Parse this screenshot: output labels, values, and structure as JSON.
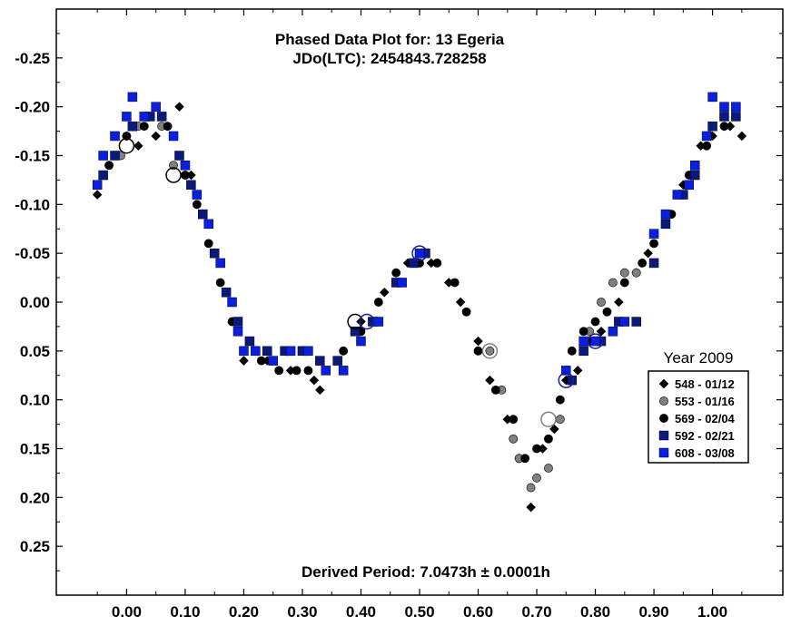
{
  "chart_data": {
    "type": "scatter",
    "title": "Phased Data Plot for: 13 Egeria",
    "subtitle": "JDo(LTC): 2454843.728258",
    "annotation": "Derived Period: 7.0473h  ± 0.0001h",
    "xlim": [
      -0.12,
      1.12
    ],
    "ylim": [
      0.3,
      -0.3
    ],
    "y_inverted": true,
    "x_ticks": [
      0.0,
      0.1,
      0.2,
      0.3,
      0.4,
      0.5,
      0.6,
      0.7,
      0.8,
      0.9,
      1.0
    ],
    "x_tick_labels": [
      "0.00",
      "0.10",
      "0.20",
      "0.30",
      "0.40",
      "0.50",
      "0.60",
      "0.70",
      "0.80",
      "0.90",
      "1.00"
    ],
    "y_ticks": [
      -0.25,
      -0.2,
      -0.15,
      -0.1,
      -0.05,
      0.0,
      0.05,
      0.1,
      0.15,
      0.2,
      0.25
    ],
    "y_tick_labels": [
      "-0.25",
      "-0.20",
      "-0.15",
      "-0.10",
      "-0.05",
      "0.00",
      "0.05",
      "0.10",
      "0.15",
      "0.20",
      "0.25"
    ],
    "grid": false,
    "legend": {
      "title": "Year 2009",
      "placement": "right"
    },
    "series": [
      {
        "name": "548 - 01/12",
        "marker": "diamond",
        "color": "#000000",
        "points": [
          [
            -0.05,
            -0.11
          ],
          [
            -0.03,
            -0.14
          ],
          [
            0.0,
            -0.17
          ],
          [
            0.02,
            -0.16
          ],
          [
            0.05,
            -0.17
          ],
          [
            0.09,
            -0.2
          ],
          [
            0.11,
            -0.13
          ],
          [
            0.13,
            -0.09
          ],
          [
            0.15,
            -0.05
          ],
          [
            0.2,
            0.06
          ],
          [
            0.24,
            0.06
          ],
          [
            0.28,
            0.07
          ],
          [
            0.32,
            0.08
          ],
          [
            0.33,
            0.09
          ],
          [
            0.36,
            0.06
          ],
          [
            0.4,
            0.02
          ],
          [
            0.44,
            -0.01
          ],
          [
            0.48,
            -0.04
          ],
          [
            0.52,
            -0.04
          ],
          [
            0.55,
            -0.02
          ],
          [
            0.57,
            0.0
          ],
          [
            0.6,
            0.04
          ],
          [
            0.62,
            0.08
          ],
          [
            0.65,
            0.12
          ],
          [
            0.67,
            0.16
          ],
          [
            0.69,
            0.21
          ],
          [
            0.71,
            0.15
          ],
          [
            0.73,
            0.13
          ],
          [
            0.75,
            0.08
          ],
          [
            0.77,
            0.07
          ],
          [
            0.79,
            0.04
          ],
          [
            0.81,
            0.03
          ],
          [
            0.84,
            0.0
          ],
          [
            0.87,
            -0.03
          ],
          [
            0.89,
            -0.05
          ],
          [
            0.92,
            -0.08
          ],
          [
            0.95,
            -0.12
          ],
          [
            0.98,
            -0.16
          ],
          [
            1.0,
            -0.17
          ],
          [
            1.03,
            -0.18
          ],
          [
            1.05,
            -0.17
          ]
        ]
      },
      {
        "name": "553 - 01/16",
        "marker": "circle",
        "color": "#808080",
        "points": [
          [
            -0.04,
            -0.13
          ],
          [
            -0.01,
            -0.15
          ],
          [
            0.02,
            -0.18
          ],
          [
            0.06,
            -0.18
          ],
          [
            0.08,
            -0.14
          ],
          [
            0.1,
            -0.13
          ],
          [
            0.62,
            0.05
          ],
          [
            0.64,
            0.09
          ],
          [
            0.66,
            0.14
          ],
          [
            0.67,
            0.16
          ],
          [
            0.69,
            0.19
          ],
          [
            0.7,
            0.18
          ],
          [
            0.72,
            0.17
          ],
          [
            0.74,
            0.12
          ],
          [
            0.76,
            0.08
          ],
          [
            0.79,
            0.03
          ],
          [
            0.81,
            0.0
          ],
          [
            0.83,
            -0.02
          ],
          [
            0.85,
            -0.03
          ],
          [
            0.87,
            -0.03
          ]
        ]
      },
      {
        "name": "569 - 02/04",
        "marker": "circle",
        "color": "#000000",
        "points": [
          [
            -0.03,
            -0.14
          ],
          [
            0.0,
            -0.17
          ],
          [
            0.03,
            -0.18
          ],
          [
            0.07,
            -0.18
          ],
          [
            0.1,
            -0.13
          ],
          [
            0.12,
            -0.1
          ],
          [
            0.14,
            -0.06
          ],
          [
            0.16,
            -0.02
          ],
          [
            0.18,
            0.02
          ],
          [
            0.2,
            0.05
          ],
          [
            0.23,
            0.06
          ],
          [
            0.26,
            0.07
          ],
          [
            0.29,
            0.07
          ],
          [
            0.31,
            0.07
          ],
          [
            0.34,
            0.07
          ],
          [
            0.37,
            0.05
          ],
          [
            0.4,
            0.03
          ],
          [
            0.43,
            0.0
          ],
          [
            0.46,
            -0.03
          ],
          [
            0.5,
            -0.04
          ],
          [
            0.53,
            -0.04
          ],
          [
            0.56,
            -0.02
          ],
          [
            0.58,
            0.01
          ],
          [
            0.6,
            0.05
          ],
          [
            0.63,
            0.09
          ],
          [
            0.66,
            0.12
          ],
          [
            0.68,
            0.16
          ],
          [
            0.7,
            0.15
          ],
          [
            0.72,
            0.14
          ],
          [
            0.74,
            0.1
          ],
          [
            0.76,
            0.05
          ],
          [
            0.78,
            0.03
          ],
          [
            0.8,
            0.02
          ],
          [
            0.82,
            0.01
          ],
          [
            0.85,
            -0.02
          ],
          [
            0.88,
            -0.04
          ],
          [
            0.9,
            -0.06
          ],
          [
            0.93,
            -0.09
          ],
          [
            0.96,
            -0.13
          ],
          [
            0.99,
            -0.16
          ],
          [
            1.02,
            -0.18
          ],
          [
            1.04,
            -0.19
          ]
        ]
      },
      {
        "name": "592 - 02/21",
        "marker": "square",
        "color": "#0a1a7a",
        "points": [
          [
            -0.04,
            -0.13
          ],
          [
            -0.02,
            -0.15
          ],
          [
            0.01,
            -0.18
          ],
          [
            0.04,
            -0.19
          ],
          [
            0.06,
            -0.19
          ],
          [
            0.09,
            -0.15
          ],
          [
            0.11,
            -0.12
          ],
          [
            0.13,
            -0.09
          ],
          [
            0.15,
            -0.05
          ],
          [
            0.17,
            -0.01
          ],
          [
            0.19,
            0.02
          ],
          [
            0.21,
            0.04
          ],
          [
            0.24,
            0.05
          ],
          [
            0.27,
            0.05
          ],
          [
            0.3,
            0.05
          ],
          [
            0.33,
            0.06
          ],
          [
            0.36,
            0.06
          ],
          [
            0.39,
            0.03
          ],
          [
            0.42,
            0.02
          ],
          [
            0.46,
            -0.02
          ],
          [
            0.49,
            -0.04
          ],
          [
            0.51,
            -0.05
          ],
          [
            0.76,
            0.08
          ],
          [
            0.78,
            0.05
          ],
          [
            0.81,
            0.04
          ],
          [
            0.84,
            0.02
          ],
          [
            0.87,
            0.02
          ],
          [
            0.9,
            -0.04
          ],
          [
            0.92,
            -0.08
          ],
          [
            0.95,
            -0.11
          ],
          [
            0.97,
            -0.13
          ],
          [
            1.0,
            -0.18
          ],
          [
            1.02,
            -0.19
          ],
          [
            1.04,
            -0.19
          ]
        ]
      },
      {
        "name": "608 - 03/08",
        "marker": "square",
        "color": "#0a1fe0",
        "points": [
          [
            -0.05,
            -0.12
          ],
          [
            -0.04,
            -0.15
          ],
          [
            -0.02,
            -0.17
          ],
          [
            0.0,
            -0.19
          ],
          [
            0.01,
            -0.21
          ],
          [
            0.03,
            -0.19
          ],
          [
            0.05,
            -0.2
          ],
          [
            0.08,
            -0.17
          ],
          [
            0.1,
            -0.14
          ],
          [
            0.12,
            -0.11
          ],
          [
            0.14,
            -0.08
          ],
          [
            0.16,
            -0.04
          ],
          [
            0.18,
            0.0
          ],
          [
            0.19,
            0.03
          ],
          [
            0.2,
            0.05
          ],
          [
            0.22,
            0.05
          ],
          [
            0.25,
            0.06
          ],
          [
            0.28,
            0.05
          ],
          [
            0.31,
            0.05
          ],
          [
            0.34,
            0.07
          ],
          [
            0.37,
            0.07
          ],
          [
            0.4,
            0.04
          ],
          [
            0.43,
            0.02
          ],
          [
            0.47,
            -0.02
          ],
          [
            0.5,
            -0.05
          ],
          [
            0.75,
            0.07
          ],
          [
            0.78,
            0.04
          ],
          [
            0.8,
            0.04
          ],
          [
            0.83,
            0.03
          ],
          [
            0.85,
            0.02
          ],
          [
            0.9,
            -0.07
          ],
          [
            0.92,
            -0.09
          ],
          [
            0.94,
            -0.11
          ],
          [
            0.96,
            -0.12
          ],
          [
            0.97,
            -0.14
          ],
          [
            0.99,
            -0.17
          ],
          [
            1.0,
            -0.21
          ],
          [
            1.02,
            -0.2
          ],
          [
            1.04,
            -0.2
          ]
        ]
      }
    ],
    "outlined_markers": [
      {
        "color": "#000000",
        "points": [
          [
            0.08,
            -0.13
          ],
          [
            0.0,
            -0.16
          ],
          [
            0.39,
            0.02
          ]
        ]
      },
      {
        "color": "#808080",
        "points": [
          [
            0.62,
            0.05
          ],
          [
            0.72,
            0.12
          ]
        ]
      },
      {
        "color": "#1a1aa0",
        "points": [
          [
            0.41,
            0.02
          ],
          [
            0.5,
            -0.05
          ],
          [
            0.75,
            0.08
          ],
          [
            0.8,
            0.04
          ]
        ]
      }
    ]
  }
}
